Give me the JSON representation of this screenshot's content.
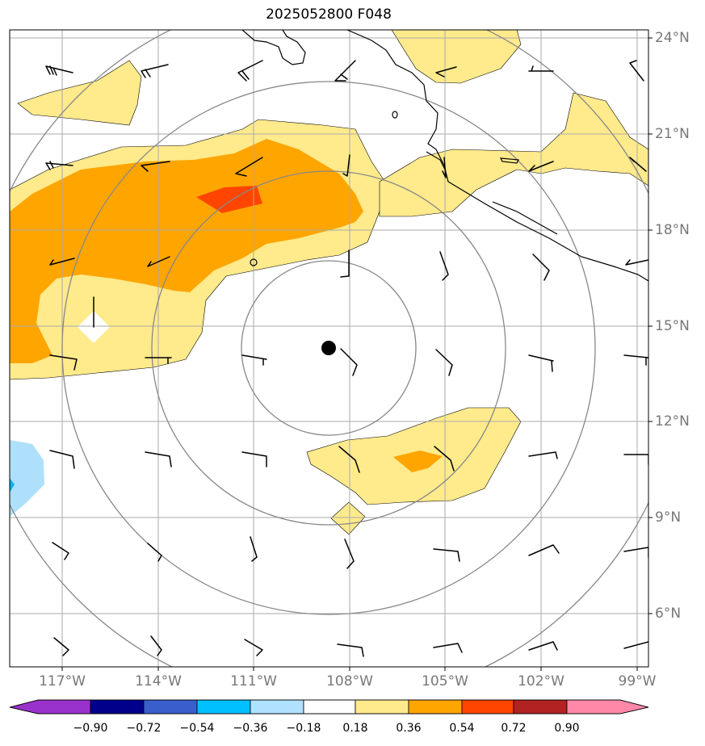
{
  "title": "2025052800 F048",
  "map": {
    "lat_labels": [
      "24°N",
      "21°N",
      "18°N",
      "15°N",
      "12°N",
      "9°N",
      "6°N"
    ],
    "lon_labels": [
      "117°W",
      "114°W",
      "111°W",
      "108°W",
      "105°W",
      "102°W",
      "99°W"
    ],
    "storm_center": {
      "lon": -108.7,
      "lat": 14.3
    },
    "range_rings": "concentric gray circles around storm center",
    "colors": {
      "yellow": "#ffea8c",
      "orange": "#ffa500",
      "red_orange": "#ff4500",
      "light_blue": "#aee0fb",
      "cyan": "#00b4f0",
      "coast": "#000000",
      "grid": "#aaaaaa",
      "ring": "#888888"
    }
  },
  "colorbar": {
    "labels": [
      "−0.90",
      "−0.72",
      "−0.54",
      "−0.36",
      "−0.18",
      "0.18",
      "0.36",
      "0.54",
      "0.72",
      "0.90"
    ],
    "colors": [
      "#9932cc",
      "#00008b",
      "#3a5fcd",
      "#00bfff",
      "#b0e2ff",
      "#ffffff",
      "#ffea8c",
      "#ffa500",
      "#ff4500",
      "#b22222",
      "#ff88a8"
    ]
  }
}
